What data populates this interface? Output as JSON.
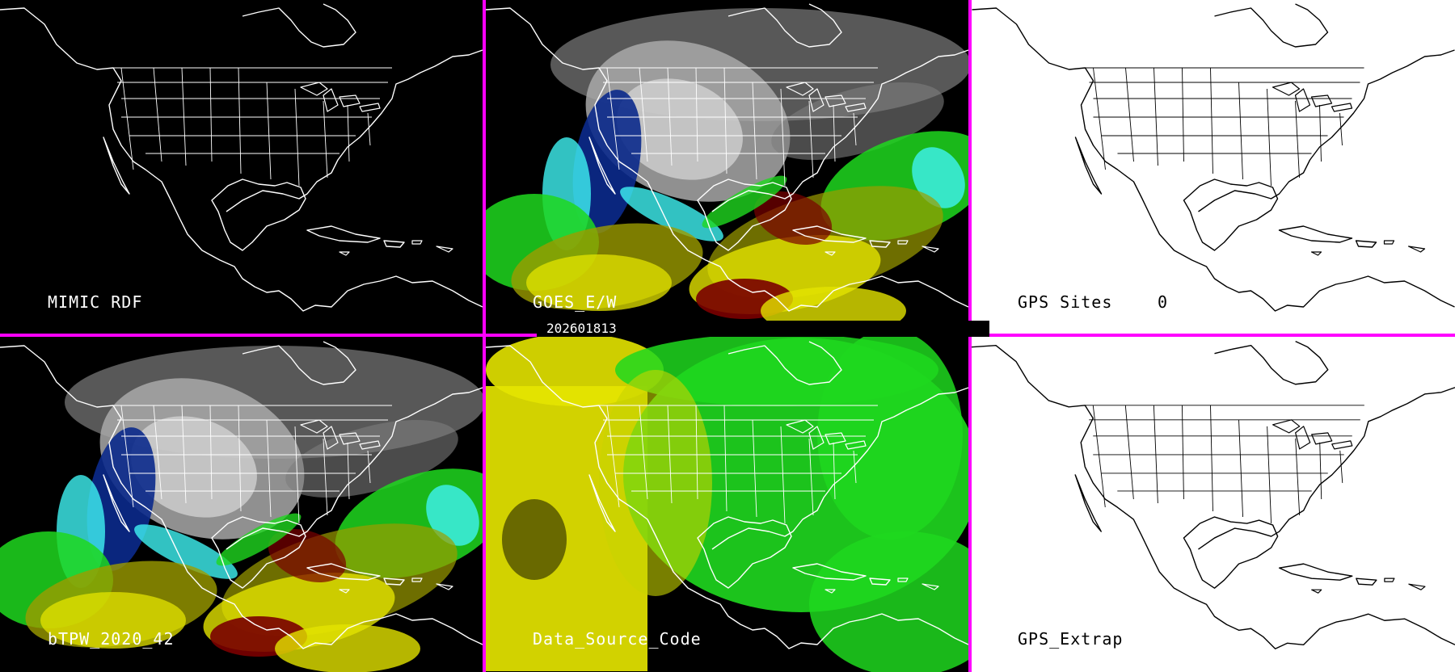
{
  "panels": [
    {
      "id": "mimic_rdf",
      "label": "MIMIC RDF",
      "theme": "dark",
      "has_data": false
    },
    {
      "id": "goes_ew",
      "label": "GOES_E/W",
      "theme": "dark",
      "has_data": true,
      "palette": "moist"
    },
    {
      "id": "gps_sites",
      "label": "GPS Sites",
      "count": "0",
      "theme": "light",
      "has_data": false
    },
    {
      "id": "btpw",
      "label": "bTPW_2020_42",
      "theme": "dark",
      "has_data": true,
      "palette": "moist"
    },
    {
      "id": "data_source_code",
      "label": "Data_Source_Code",
      "theme": "dark",
      "has_data": true,
      "palette": "source"
    },
    {
      "id": "gps_extrap",
      "label": "GPS_Extrap",
      "theme": "light",
      "has_data": false
    }
  ],
  "timestamp": "202601813",
  "colors": {
    "divider": "#ff00ff",
    "map_outline_dark": "#ffffff",
    "map_outline_light": "#000000",
    "cloud_gray": "#a9a9a9",
    "ice_cyan": "#3ff2f2",
    "deep_blue": "#0b2a8c",
    "green": "#1fd81f",
    "yellow": "#e4e400",
    "dark_red": "#7a0000",
    "olive": "#9c9c00"
  }
}
